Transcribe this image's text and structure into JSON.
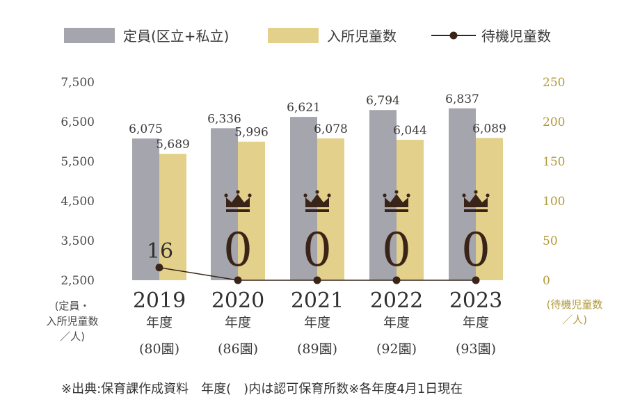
{
  "legend": {
    "capacity": "定員(区立+私立)",
    "enrolled": "入所児童数",
    "waiting": "待機児童数"
  },
  "axis": {
    "left_title_lines": [
      "(定員・",
      "入所児童数",
      "／人)"
    ],
    "right_title_lines": [
      "(待機児童数",
      "／人)"
    ]
  },
  "year_suffix": "年度",
  "footnote": "※出典:保育課作成資料　年度(　)内は認可保育所数※各年度4月1日現在",
  "colors": {
    "capacity": "#a5a5ad",
    "enrolled": "#e3d08a",
    "waiting_line": "#3a2418",
    "right_axis_text": "#b29a3a",
    "crown": "#3a2418"
  },
  "chart_data": {
    "type": "bar",
    "categories": [
      "2019",
      "2020",
      "2021",
      "2022",
      "2023"
    ],
    "facility_counts": [
      "(80園)",
      "(86園)",
      "(89園)",
      "(92園)",
      "(93園)"
    ],
    "series": [
      {
        "name": "定員(区立+私立)",
        "axis": "left",
        "values": [
          6075,
          6336,
          6621,
          6794,
          6837
        ],
        "labels": [
          "6,075",
          "6,336",
          "6,621",
          "6,794",
          "6,837"
        ]
      },
      {
        "name": "入所児童数",
        "axis": "left",
        "values": [
          5689,
          5996,
          6078,
          6044,
          6089
        ],
        "labels": [
          "5,689",
          "5,996",
          "6,078",
          "6,044",
          "6,089"
        ]
      },
      {
        "name": "待機児童数",
        "axis": "right",
        "type": "line",
        "values": [
          16,
          0,
          0,
          0,
          0
        ],
        "labels": [
          "16",
          "0",
          "0",
          "0",
          "0"
        ],
        "crown": [
          false,
          true,
          true,
          true,
          true
        ]
      }
    ],
    "ylim_left": [
      2500,
      7500
    ],
    "yticks_left": [
      "7,500",
      "6,500",
      "5,500",
      "4,500",
      "3,500",
      "2,500"
    ],
    "ylim_right": [
      0,
      250
    ],
    "yticks_right": [
      "250",
      "200",
      "150",
      "100",
      "50",
      "0"
    ],
    "grid": false,
    "legend_position": "top"
  }
}
